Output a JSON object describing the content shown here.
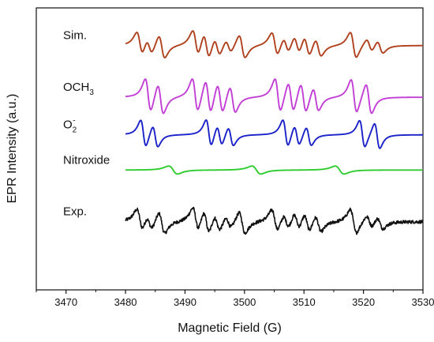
{
  "chart_data": {
    "type": "line",
    "title": "",
    "xlabel": "Magnetic Field  (G)",
    "ylabel": "EPR Intensity (a.u.)",
    "xlim": [
      3465,
      3530
    ],
    "x_ticks": [
      3470,
      3480,
      3490,
      3500,
      3510,
      3520,
      3530
    ],
    "x_tick_labels": [
      "3470",
      "3480",
      "3490",
      "3500",
      "3510",
      "3520",
      "3530"
    ],
    "y_ticks_shown": false,
    "grid": false,
    "legend": "none (series labels placed at left of each trace)",
    "x_range_traces": [
      3480,
      3530
    ],
    "series": [
      {
        "name": "Sim.",
        "label_main": "Sim.",
        "label_sub": "",
        "label_sup": "",
        "color": "#b0411e",
        "baseline_y": 5.2,
        "scale": 0.32,
        "lines": [
          {
            "center": 3482.4,
            "amp": 0.9,
            "width": 0.9
          },
          {
            "center": 3484.0,
            "amp": 0.6,
            "width": 0.9
          },
          {
            "center": 3486.1,
            "amp": 0.9,
            "width": 0.9
          },
          {
            "center": 3491.8,
            "amp": 1.0,
            "width": 0.9
          },
          {
            "center": 3493.6,
            "amp": 1.0,
            "width": 0.9
          },
          {
            "center": 3495.4,
            "amp": 0.7,
            "width": 0.9
          },
          {
            "center": 3497.3,
            "amp": 0.5,
            "width": 0.9
          },
          {
            "center": 3499.6,
            "amp": 0.9,
            "width": 0.9
          },
          {
            "center": 3505.1,
            "amp": 0.9,
            "width": 0.9
          },
          {
            "center": 3507.0,
            "amp": 0.6,
            "width": 0.9
          },
          {
            "center": 3508.8,
            "amp": 0.7,
            "width": 0.9
          },
          {
            "center": 3510.5,
            "amp": 0.8,
            "width": 0.9
          },
          {
            "center": 3512.4,
            "amp": 0.7,
            "width": 0.9
          },
          {
            "center": 3518.3,
            "amp": 1.0,
            "width": 0.9
          },
          {
            "center": 3521.0,
            "amp": 0.5,
            "width": 0.9
          },
          {
            "center": 3522.8,
            "amp": 0.5,
            "width": 0.9
          }
        ]
      },
      {
        "name": "OCH3",
        "label_main": "OCH",
        "label_sub": "3",
        "label_sup": "",
        "color": "#c23fd6",
        "baseline_y": 4.1,
        "scale": 0.42,
        "lines": [
          {
            "center": 3483.8,
            "amp": 1.0,
            "width": 0.85
          },
          {
            "center": 3485.9,
            "amp": 0.9,
            "width": 0.85
          },
          {
            "center": 3491.7,
            "amp": 1.0,
            "width": 0.85
          },
          {
            "center": 3493.9,
            "amp": 1.0,
            "width": 0.85
          },
          {
            "center": 3495.9,
            "amp": 0.9,
            "width": 0.85
          },
          {
            "center": 3498.0,
            "amp": 0.8,
            "width": 0.85
          },
          {
            "center": 3505.6,
            "amp": 1.0,
            "width": 0.85
          },
          {
            "center": 3507.8,
            "amp": 0.9,
            "width": 0.85
          },
          {
            "center": 3509.9,
            "amp": 0.9,
            "width": 0.85
          },
          {
            "center": 3512.0,
            "amp": 0.7,
            "width": 0.85
          },
          {
            "center": 3518.4,
            "amp": 1.0,
            "width": 0.85
          },
          {
            "center": 3520.9,
            "amp": 0.9,
            "width": 0.85
          }
        ]
      },
      {
        "name": "O2-",
        "label_main": "O",
        "label_sub": "2",
        "label_sup": "-",
        "color": "#1a22c8",
        "baseline_y": 3.3,
        "scale": 0.34,
        "lines": [
          {
            "center": 3483.0,
            "amp": 1.0,
            "width": 0.8
          },
          {
            "center": 3485.0,
            "amp": 0.8,
            "width": 0.8
          },
          {
            "center": 3494.0,
            "amp": 1.0,
            "width": 0.8
          },
          {
            "center": 3495.8,
            "amp": 0.75,
            "width": 0.8
          },
          {
            "center": 3497.7,
            "amp": 0.7,
            "width": 0.8
          },
          {
            "center": 3506.9,
            "amp": 1.0,
            "width": 0.8
          },
          {
            "center": 3508.8,
            "amp": 0.75,
            "width": 0.8
          },
          {
            "center": 3510.8,
            "amp": 0.7,
            "width": 0.8
          },
          {
            "center": 3519.8,
            "amp": 1.0,
            "width": 0.8
          },
          {
            "center": 3522.3,
            "amp": 0.95,
            "width": 0.8
          }
        ]
      },
      {
        "name": "Nitroxide",
        "label_main": "Nitroxide",
        "label_sub": "",
        "label_sup": "",
        "color": "#2ecc2e",
        "baseline_y": 2.55,
        "scale": 0.1,
        "lines": [
          {
            "center": 3488.0,
            "amp": 1.0,
            "width": 1.3
          },
          {
            "center": 3502.0,
            "amp": 1.0,
            "width": 1.3
          },
          {
            "center": 3516.0,
            "amp": 1.0,
            "width": 1.3
          }
        ]
      },
      {
        "name": "Exp.",
        "label_main": "Exp.",
        "label_sub": "",
        "label_sup": "",
        "color": "#111111",
        "baseline_y": 1.45,
        "scale": 0.3,
        "noise": 0.035,
        "lines": [
          {
            "center": 3482.4,
            "amp": 0.9,
            "width": 0.9
          },
          {
            "center": 3484.0,
            "amp": 0.6,
            "width": 0.9
          },
          {
            "center": 3486.1,
            "amp": 0.9,
            "width": 0.9
          },
          {
            "center": 3491.8,
            "amp": 1.0,
            "width": 0.9
          },
          {
            "center": 3493.6,
            "amp": 1.0,
            "width": 0.9
          },
          {
            "center": 3495.4,
            "amp": 0.7,
            "width": 0.9
          },
          {
            "center": 3497.3,
            "amp": 0.5,
            "width": 0.9
          },
          {
            "center": 3499.6,
            "amp": 0.9,
            "width": 0.9
          },
          {
            "center": 3505.1,
            "amp": 0.9,
            "width": 0.9
          },
          {
            "center": 3507.0,
            "amp": 0.6,
            "width": 0.9
          },
          {
            "center": 3508.8,
            "amp": 0.7,
            "width": 0.9
          },
          {
            "center": 3510.5,
            "amp": 0.8,
            "width": 0.9
          },
          {
            "center": 3512.4,
            "amp": 0.7,
            "width": 0.9
          },
          {
            "center": 3518.3,
            "amp": 1.0,
            "width": 0.9
          },
          {
            "center": 3521.0,
            "amp": 0.5,
            "width": 0.9
          },
          {
            "center": 3522.8,
            "amp": 0.5,
            "width": 0.9
          }
        ]
      }
    ],
    "ylim": [
      0,
      6
    ]
  }
}
